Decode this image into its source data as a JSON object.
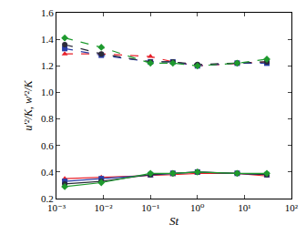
{
  "chart_data": {
    "type": "line",
    "x_label": "St",
    "y_label": "u′²/K, w′²/K",
    "log": "x",
    "x": [
      0.0015,
      0.009,
      0.1,
      0.3,
      1,
      7,
      30
    ],
    "xlim": [
      0.001,
      100
    ],
    "xticks": [
      {
        "value": 0.001,
        "label": "10⁻³"
      },
      {
        "value": 0.01,
        "label": "10⁻²"
      },
      {
        "value": 0.1,
        "label": "10⁻¹"
      },
      {
        "value": 1,
        "label": "10⁰"
      },
      {
        "value": 10,
        "label": "10¹"
      },
      {
        "value": 100,
        "label": "10²"
      }
    ],
    "ylim": [
      0.2,
      1.6
    ],
    "yticks": [
      0.2,
      0.4,
      0.6,
      0.8,
      {
        "value": 1,
        "label": "1.0"
      },
      1.2,
      1.4,
      1.6
    ],
    "grid": false,
    "series": [
      {
        "color": "#e8202a",
        "marker": "triangle-up",
        "line_style": "dash",
        "values": [
          1.29,
          1.29,
          1.27,
          1.23,
          1.2,
          1.22,
          1.23
        ]
      },
      {
        "color": "#2a3ea8",
        "marker": "square",
        "line_style": "dash",
        "values": [
          1.33,
          1.28,
          1.23,
          1.23,
          1.2,
          1.22,
          1.22
        ]
      },
      {
        "color": "#2b2b3b",
        "marker": "circle",
        "line_style": "dash",
        "values": [
          1.36,
          1.29,
          1.23,
          1.23,
          1.21,
          1.22,
          1.23
        ]
      },
      {
        "color": "#1e9a2e",
        "marker": "diamond",
        "line_style": "dash",
        "values": [
          1.41,
          1.34,
          1.22,
          1.22,
          1.2,
          1.22,
          1.25
        ]
      },
      {
        "color": "#e8202a",
        "marker": "triangle-up",
        "line_style": "solid",
        "values": [
          0.35,
          0.36,
          0.37,
          0.38,
          0.39,
          0.39,
          0.37
        ]
      },
      {
        "color": "#2a3ea8",
        "marker": "square",
        "line_style": "solid",
        "values": [
          0.33,
          0.35,
          0.38,
          0.39,
          0.4,
          0.39,
          0.38
        ]
      },
      {
        "color": "#2b2b3b",
        "marker": "circle",
        "line_style": "solid",
        "values": [
          0.31,
          0.33,
          0.38,
          0.39,
          0.4,
          0.39,
          0.38
        ]
      },
      {
        "color": "#1e9a2e",
        "marker": "diamond",
        "line_style": "solid",
        "values": [
          0.29,
          0.32,
          0.39,
          0.39,
          0.4,
          0.39,
          0.39
        ]
      }
    ]
  }
}
